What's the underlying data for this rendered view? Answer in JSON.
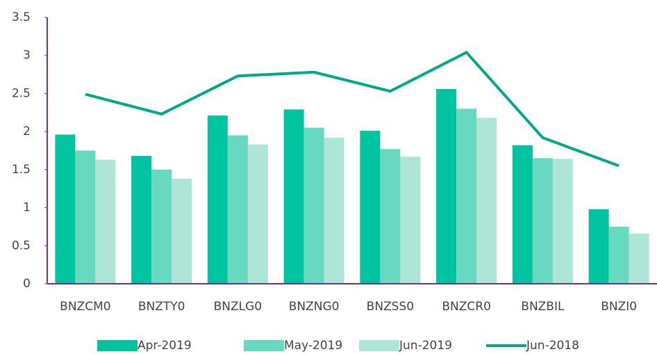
{
  "chart_data": {
    "type": "bar",
    "categories": [
      "BNZCM0",
      "BNZTY0",
      "BNZLG0",
      "BNZNG0",
      "BNZSS0",
      "BNZCR0",
      "BNZBIL",
      "BNZI0"
    ],
    "series": [
      {
        "name": "Apr-2019",
        "color": "#00c4a0",
        "type": "bar",
        "values": [
          1.96,
          1.68,
          2.21,
          2.29,
          2.01,
          2.56,
          1.82,
          0.98
        ]
      },
      {
        "name": "May-2019",
        "color": "#66d9c0",
        "type": "bar",
        "values": [
          1.75,
          1.5,
          1.95,
          2.05,
          1.77,
          2.3,
          1.65,
          0.75
        ]
      },
      {
        "name": "Jun-2019",
        "color": "#ade6d6",
        "type": "bar",
        "values": [
          1.63,
          1.38,
          1.83,
          1.92,
          1.67,
          2.18,
          1.64,
          0.66
        ]
      },
      {
        "name": "Jun-2018",
        "color": "#00a88a",
        "type": "line",
        "values": [
          2.49,
          2.23,
          2.73,
          2.78,
          2.53,
          3.04,
          1.92,
          1.55
        ]
      }
    ],
    "ylim": [
      0,
      3.5
    ],
    "yticks": [
      0,
      0.5,
      1,
      1.5,
      2,
      2.5,
      3,
      3.5
    ],
    "legend": "bottom"
  }
}
